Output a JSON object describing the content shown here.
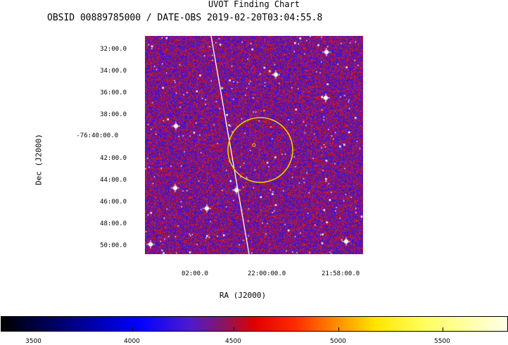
{
  "title": "UVOT Finding Chart",
  "subtitle": "OBSID 00889785000 / DATE-OBS 2019-02-20T03:04:55.8",
  "axes": {
    "xlabel": "RA (J2000)",
    "ylabel": "Dec (J2000)",
    "yticks": [
      "32:00.0",
      "34:00.0",
      "36:00.0",
      "38:00.0",
      "-76:40:00.0",
      "42:00.0",
      "44:00.0",
      "46:00.0",
      "48:00.0",
      "50:00.0"
    ],
    "xticks": [
      "02:00.0",
      "22:00:00.0",
      "21:58:00.0"
    ]
  },
  "colorbar": {
    "ticks": [
      "3500",
      "4000",
      "4500",
      "5000",
      "5500"
    ]
  },
  "colors": {
    "image_base": "#2a0fb8",
    "noise_red": "#c81a1a",
    "noise_blue": "#1a1ae8",
    "circle": "#e8d000",
    "line": "#ffffff"
  }
}
